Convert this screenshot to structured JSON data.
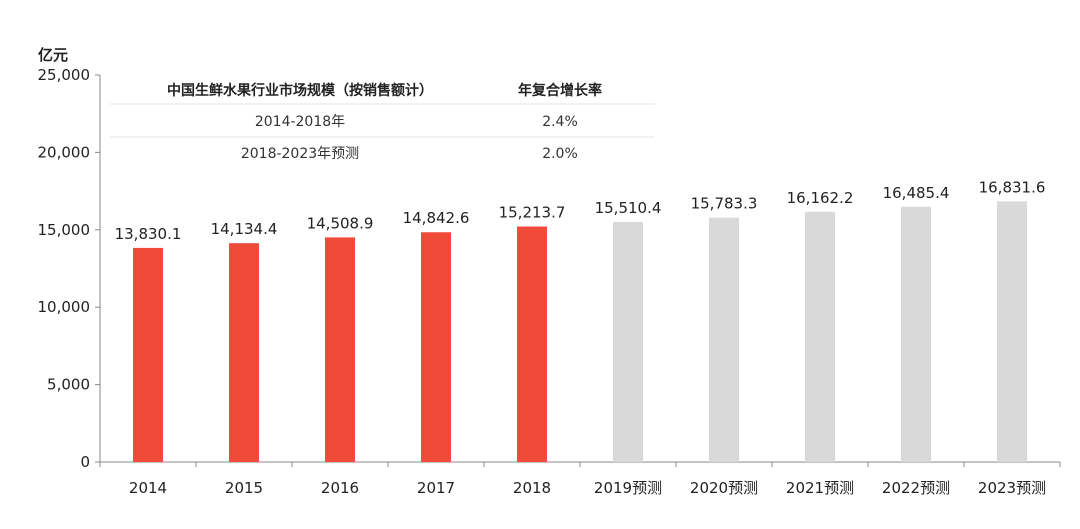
{
  "chart_data": {
    "type": "bar",
    "ylabel": "亿元",
    "ylim": [
      0,
      25000
    ],
    "yticks": [
      "0",
      "5,000",
      "10,000",
      "15,000",
      "20,000",
      "25,000"
    ],
    "categories": [
      "2014",
      "2015",
      "2016",
      "2017",
      "2018",
      "2019预测",
      "2020预测",
      "2021预测",
      "2022预测",
      "2023预测"
    ],
    "values": [
      13830.1,
      14134.4,
      14508.9,
      14842.6,
      15213.7,
      15510.4,
      15783.3,
      16162.2,
      16485.4,
      16831.6
    ],
    "value_labels": [
      "13,830.1",
      "14,134.4",
      "14,508.9",
      "14,842.6",
      "15,213.7",
      "15,510.4",
      "15,783.3",
      "16,162.2",
      "16,485.4",
      "16,831.6"
    ],
    "bar_colors": [
      "#f04a3a",
      "#f04a3a",
      "#f04a3a",
      "#f04a3a",
      "#f04a3a",
      "#d9d9d9",
      "#d9d9d9",
      "#d9d9d9",
      "#d9d9d9",
      "#d9d9d9"
    ],
    "grid": false,
    "table": {
      "headers": [
        "中国生鲜水果行业市场规模（按销售额计）",
        "年复合增长率"
      ],
      "rows": [
        [
          "2014-2018年",
          "2.4%"
        ],
        [
          "2018-2023年预测",
          "2.0%"
        ]
      ]
    }
  }
}
